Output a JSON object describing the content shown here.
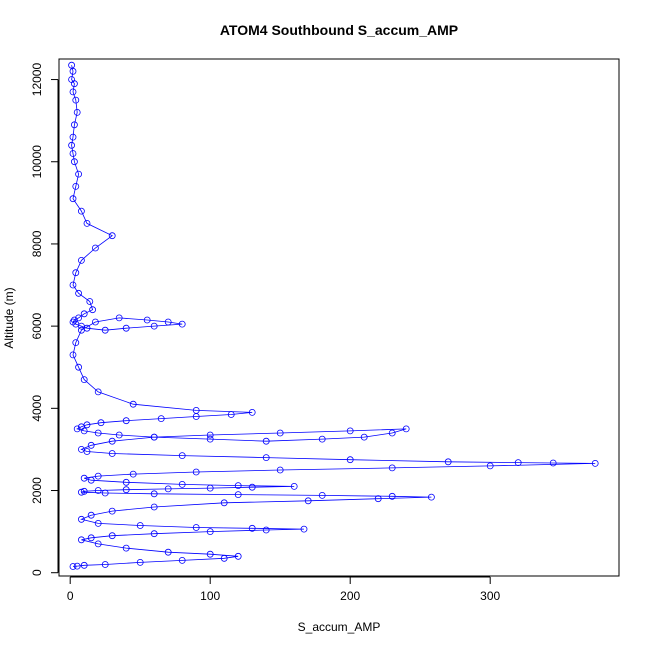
{
  "chart_data": {
    "type": "scatter",
    "title": "ATOM4 Southbound S_accum_AMP",
    "xlabel": "S_accum_AMP",
    "ylabel": "Altitude (m)",
    "xlim": [
      -8,
      392
    ],
    "ylim": [
      -80,
      12500
    ],
    "xticks": [
      0,
      100,
      200,
      300
    ],
    "yticks": [
      0,
      2000,
      4000,
      6000,
      8000,
      10000,
      12000
    ],
    "grid": false,
    "legend": "none",
    "series_color": "#0000ff",
    "marker": "open-circle",
    "line": true,
    "series": [
      {
        "x": [
          1,
          2,
          1,
          3,
          2,
          4,
          5,
          3,
          2,
          1,
          2,
          3,
          6,
          4,
          2,
          8,
          12,
          30,
          18,
          8,
          4,
          2,
          6,
          14,
          16,
          10,
          6,
          3,
          2,
          4,
          8,
          12,
          25,
          40,
          60,
          80,
          70,
          55,
          35,
          18,
          8,
          4,
          2,
          6,
          10,
          20,
          45,
          90,
          130,
          115,
          90,
          65,
          40,
          22,
          12,
          8,
          5,
          10,
          20,
          35,
          60,
          100,
          140,
          180,
          210,
          230,
          240,
          200,
          150,
          100,
          60,
          30,
          15,
          8,
          12,
          30,
          80,
          140,
          200,
          270,
          320,
          345,
          375,
          300,
          230,
          150,
          90,
          45,
          20,
          10,
          15,
          40,
          80,
          120,
          160,
          130,
          100,
          70,
          40,
          20,
          10,
          8,
          25,
          60,
          120,
          180,
          230,
          258,
          220,
          170,
          110,
          60,
          30,
          15,
          8,
          20,
          50,
          90,
          130,
          167,
          140,
          100,
          60,
          30,
          15,
          8,
          20,
          40,
          70,
          100,
          120,
          110,
          80,
          50,
          25,
          10,
          5,
          2
        ],
        "y": [
          12350,
          12200,
          12000,
          11900,
          11700,
          11500,
          11200,
          10900,
          10600,
          10400,
          10200,
          10000,
          9700,
          9400,
          9100,
          8800,
          8500,
          8200,
          7900,
          7600,
          7300,
          7000,
          6800,
          6600,
          6400,
          6300,
          6200,
          6150,
          6100,
          6050,
          6000,
          5950,
          5900,
          5950,
          6000,
          6050,
          6100,
          6150,
          6200,
          6100,
          5900,
          5600,
          5300,
          5000,
          4700,
          4400,
          4100,
          3950,
          3900,
          3850,
          3800,
          3750,
          3700,
          3650,
          3600,
          3550,
          3500,
          3450,
          3400,
          3350,
          3300,
          3250,
          3200,
          3250,
          3300,
          3400,
          3500,
          3450,
          3400,
          3350,
          3300,
          3200,
          3100,
          3000,
          2950,
          2900,
          2850,
          2800,
          2750,
          2700,
          2680,
          2670,
          2660,
          2600,
          2550,
          2500,
          2450,
          2400,
          2350,
          2300,
          2250,
          2200,
          2150,
          2120,
          2100,
          2080,
          2060,
          2040,
          2020,
          2000,
          1980,
          1960,
          1940,
          1920,
          1900,
          1880,
          1860,
          1840,
          1800,
          1750,
          1700,
          1600,
          1500,
          1400,
          1300,
          1200,
          1150,
          1100,
          1080,
          1060,
          1040,
          1000,
          950,
          900,
          850,
          800,
          700,
          600,
          500,
          450,
          400,
          350,
          300,
          250,
          200,
          180,
          160,
          150
        ]
      }
    ]
  }
}
